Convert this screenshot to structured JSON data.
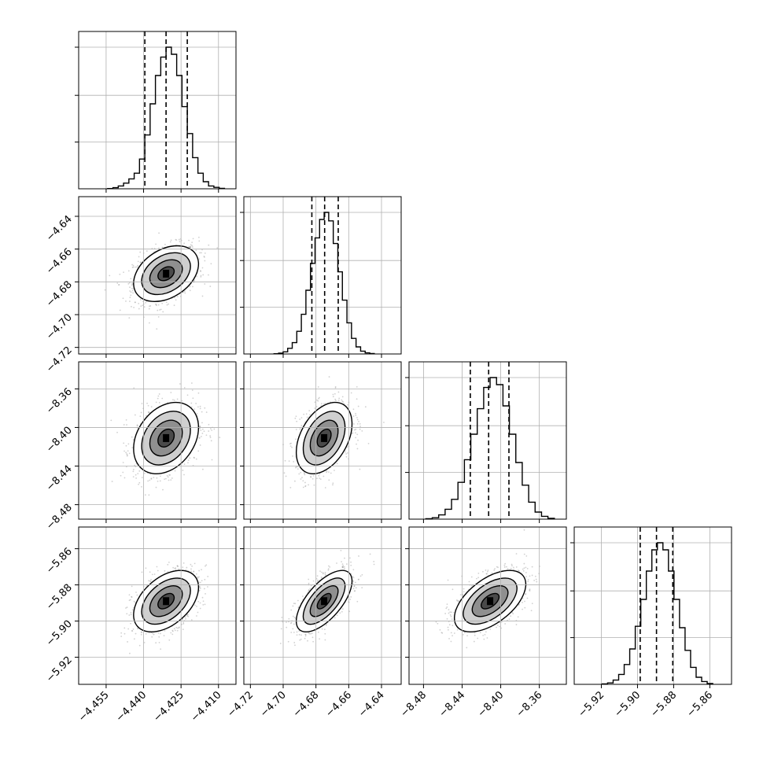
{
  "chart_data": {
    "type": "corner",
    "grid": true,
    "dims": 4,
    "params": [
      {
        "range": [
          -4.466,
          -4.403
        ],
        "ticks": [
          "−4.455",
          "−4.440",
          "−4.425",
          "−4.410"
        ],
        "tick_values": [
          -4.455,
          -4.44,
          -4.425,
          -4.41
        ],
        "quantiles": [
          -4.4395,
          -4.431,
          -4.4225
        ],
        "mean": -4.431,
        "sd": 0.0065,
        "hist": [
          0.002,
          0.008,
          0.02,
          0.04,
          0.07,
          0.11,
          0.21,
          0.38,
          0.6,
          0.8,
          0.93,
          1.0,
          0.95,
          0.8,
          0.58,
          0.39,
          0.22,
          0.11,
          0.05,
          0.02,
          0.01,
          0.003
        ]
      },
      {
        "range": [
          -4.724,
          -4.628
        ],
        "ticks": [
          "−4.72",
          "−4.70",
          "−4.68",
          "−4.66",
          "−4.64"
        ],
        "tick_values": [
          -4.72,
          -4.7,
          -4.68,
          -4.66,
          -4.64
        ],
        "quantiles": [
          -4.6825,
          -4.6747,
          -4.6664
        ],
        "mean": -4.675,
        "sd": 0.0085,
        "hist": [
          0.002,
          0.006,
          0.015,
          0.04,
          0.08,
          0.16,
          0.28,
          0.45,
          0.64,
          0.82,
          0.95,
          1.0,
          0.94,
          0.78,
          0.58,
          0.38,
          0.22,
          0.11,
          0.05,
          0.02,
          0.008,
          0.003
        ]
      },
      {
        "range": [
          -8.495,
          -8.332
        ],
        "ticks": [
          "−8.48",
          "−8.44",
          "−8.40",
          "−8.36"
        ],
        "tick_values": [
          -8.48,
          -8.44,
          -8.4,
          -8.36
        ],
        "quantiles": [
          -8.4315,
          -8.4125,
          -8.3915
        ],
        "mean": -8.411,
        "sd": 0.0185,
        "hist": [
          0.003,
          0.01,
          0.03,
          0.07,
          0.14,
          0.26,
          0.42,
          0.6,
          0.78,
          0.93,
          1.0,
          0.95,
          0.8,
          0.6,
          0.4,
          0.24,
          0.12,
          0.05,
          0.02,
          0.006
        ]
      },
      {
        "range": [
          -5.935,
          -5.848
        ],
        "ticks": [
          "−5.92",
          "−5.90",
          "−5.88",
          "−5.86"
        ],
        "tick_values": [
          -5.92,
          -5.9,
          -5.88,
          -5.86
        ],
        "quantiles": [
          -5.8985,
          -5.8895,
          -5.8805
        ],
        "mean": -5.889,
        "sd": 0.0085,
        "hist": [
          0.003,
          0.01,
          0.03,
          0.07,
          0.14,
          0.25,
          0.41,
          0.6,
          0.8,
          0.95,
          1.0,
          0.95,
          0.8,
          0.6,
          0.4,
          0.24,
          0.12,
          0.05,
          0.02,
          0.006
        ]
      }
    ],
    "correlations": [
      [
        1.0,
        0.35,
        0.3,
        0.45
      ],
      [
        0.35,
        1.0,
        0.4,
        0.65
      ],
      [
        0.3,
        0.4,
        1.0,
        0.55
      ],
      [
        0.45,
        0.65,
        0.55,
        1.0
      ]
    ],
    "contour_levels_sigma": [
      0.5,
      1.0,
      1.5,
      2.0
    ]
  }
}
